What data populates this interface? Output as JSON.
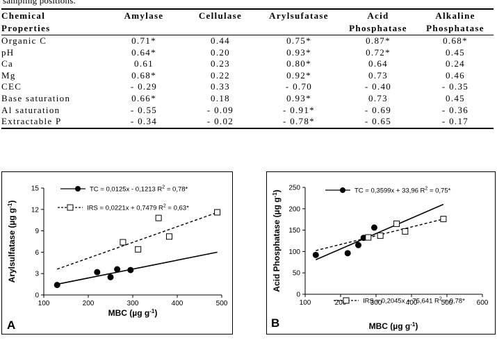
{
  "caption": "sampling positions.",
  "table": {
    "headers": [
      [
        "Chemical",
        "Properties"
      ],
      [
        "Amylase",
        ""
      ],
      [
        "Cellulase",
        ""
      ],
      [
        "Arylsufatase",
        ""
      ],
      [
        "Acid",
        "Phosphatase"
      ],
      [
        "Alkaline",
        "Phosphatase"
      ]
    ],
    "rows": [
      [
        "Organic C",
        "0.71*",
        "0.44",
        "0.75*",
        "0.87*",
        "0.68*"
      ],
      [
        "pH",
        "0.64*",
        "0.20",
        "0.93*",
        "0.72*",
        "0.45"
      ],
      [
        "Ca",
        "0.61",
        "0.23",
        "0.80*",
        "0.64",
        "0.24"
      ],
      [
        "Mg",
        "0.68*",
        "0.22",
        "0.92*",
        "0.73",
        "0.46"
      ],
      [
        "CEC",
        "- 0.29",
        "0.33",
        "- 0.70",
        "- 0.40",
        "- 0.35"
      ],
      [
        "Base saturation",
        "0.66*",
        "0.18",
        "0.93*",
        "0.73",
        "0.45"
      ],
      [
        "Al saturation",
        "- 0.55",
        "- 0.09",
        "- 0.91*",
        "- 0.69",
        "- 0.36"
      ],
      [
        "Extractable P",
        "- 0.34",
        "- 0.02",
        "- 0.78*",
        "- 0.65",
        "- 0.17"
      ]
    ]
  },
  "chart_data": [
    {
      "type": "scatter",
      "panel_label": "A",
      "xlabel": "MBC (µg g",
      "xlabel_sup": "-1",
      "xlabel_tail": ")",
      "ylabel": "Arylsulfatase (µg g",
      "ylabel_sup": "-1",
      "ylabel_tail": ")",
      "xlim": [
        100,
        500
      ],
      "ylim": [
        0,
        15
      ],
      "xticks": [
        100,
        200,
        300,
        400,
        500
      ],
      "yticks": [
        0,
        3,
        6,
        9,
        12,
        15
      ],
      "series": [
        {
          "name": "TC",
          "marker": "filled-circle",
          "line_style": "solid",
          "equation": "TC = 0,0125x - 0,1213  R",
          "r2_value": " = 0,78*",
          "points": [
            [
              130,
              1.4
            ],
            [
              220,
              3.2
            ],
            [
              250,
              2.5
            ],
            [
              265,
              3.6
            ],
            [
              295,
              3.5
            ]
          ],
          "fit": {
            "slope": 0.0125,
            "intercept": -0.1213,
            "x_range": [
              130,
              490
            ]
          }
        },
        {
          "name": "IRS",
          "marker": "open-square",
          "line_style": "dashed",
          "equation": "IRS = 0,0221x + 0,7479 R",
          "r2_value": " = 0,63*",
          "points": [
            [
              278,
              7.4
            ],
            [
              312,
              6.4
            ],
            [
              358,
              10.8
            ],
            [
              382,
              8.2
            ],
            [
              490,
              11.6
            ]
          ],
          "fit": {
            "slope": 0.0221,
            "intercept": 0.7479,
            "x_range": [
              130,
              490
            ]
          }
        }
      ]
    },
    {
      "type": "scatter",
      "panel_label": "B",
      "xlabel": "MBC (µg g",
      "xlabel_sup": "-1",
      "xlabel_tail": ")",
      "ylabel": "Acid Phosphatase (µg g",
      "ylabel_sup": "-1",
      "ylabel_tail": ")",
      "xlim": [
        100,
        600
      ],
      "ylim": [
        0,
        250
      ],
      "xticks": [
        100,
        200,
        300,
        400,
        500,
        600
      ],
      "yticks": [
        0,
        50,
        100,
        150,
        200,
        250
      ],
      "series": [
        {
          "name": "TC",
          "marker": "filled-circle",
          "line_style": "solid",
          "equation": "TC = 0,3599x + 33,96  R",
          "r2_value": " = 0,75*",
          "points": [
            [
              130,
              92
            ],
            [
              220,
              96
            ],
            [
              250,
              115
            ],
            [
              265,
              132
            ],
            [
              295,
              156
            ]
          ],
          "fit": {
            "slope": 0.3599,
            "intercept": 33.96,
            "x_range": [
              130,
              490
            ]
          }
        },
        {
          "name": "IRS",
          "marker": "open-square",
          "line_style": "dashed",
          "equation": "IRS = 0,2045x + 75,641  R",
          "r2_value": " = 0,78*",
          "points": [
            [
              278,
              133
            ],
            [
              312,
              137
            ],
            [
              358,
              165
            ],
            [
              382,
              147
            ],
            [
              490,
              176
            ]
          ],
          "fit": {
            "slope": 0.2045,
            "intercept": 75.641,
            "x_range": [
              130,
              490
            ]
          }
        }
      ]
    }
  ]
}
